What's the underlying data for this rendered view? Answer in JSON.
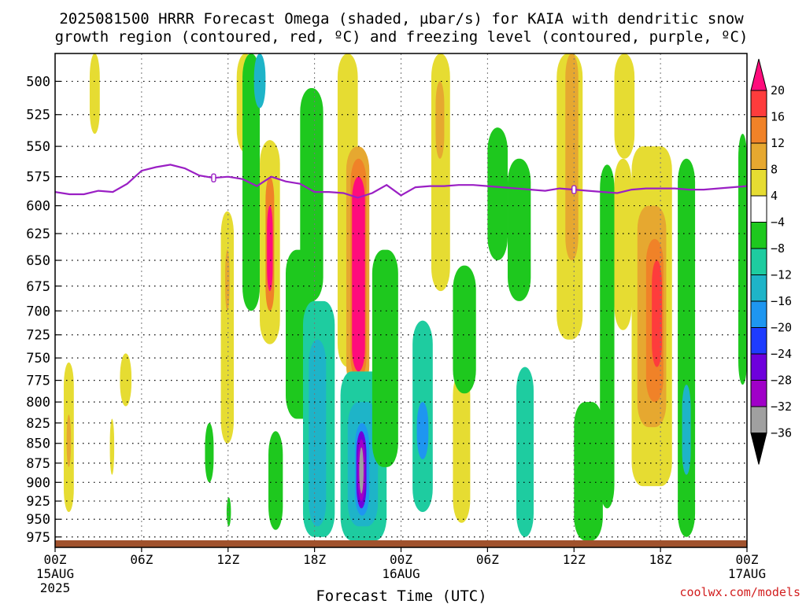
{
  "chart_data": {
    "type": "heatmap",
    "title": "2025081500 HRRR Forecast Omega (shaded, µbar/s) for KAIA with dendritic snow growth region (contoured, red, ºC) and freezing level (contoured, purple, ºC)",
    "title_lines": [
      "2025081500 HRRR Forecast Omega (shaded, µbar/s) for KAIA with dendritic snow",
      "growth region (contoured, red, ºC) and freezing level (contoured, purple, ºC)"
    ],
    "xlabel": "Forecast Time (UTC)",
    "ylabel": "",
    "x_ticks": [
      {
        "hour": 0,
        "label": "00Z",
        "sub": "15AUG",
        "sub2": "2025"
      },
      {
        "hour": 6,
        "label": "06Z",
        "sub": "",
        "sub2": ""
      },
      {
        "hour": 12,
        "label": "12Z",
        "sub": "",
        "sub2": ""
      },
      {
        "hour": 18,
        "label": "18Z",
        "sub": "",
        "sub2": ""
      },
      {
        "hour": 24,
        "label": "00Z",
        "sub": "16AUG",
        "sub2": ""
      },
      {
        "hour": 30,
        "label": "06Z",
        "sub": "",
        "sub2": ""
      },
      {
        "hour": 36,
        "label": "12Z",
        "sub": "",
        "sub2": ""
      },
      {
        "hour": 42,
        "label": "18Z",
        "sub": "",
        "sub2": ""
      },
      {
        "hour": 48,
        "label": "00Z",
        "sub": "17AUG",
        "sub2": ""
      }
    ],
    "xlim": [
      0,
      48
    ],
    "y_levels": [
      500,
      525,
      550,
      575,
      600,
      625,
      650,
      675,
      700,
      725,
      750,
      775,
      800,
      825,
      850,
      875,
      900,
      925,
      950,
      975
    ],
    "ylim": [
      480,
      990
    ],
    "y_scale": "log-pressure",
    "grid": true,
    "colorbar": {
      "labels": [
        "20",
        "16",
        "12",
        "8",
        "4",
        "−4",
        "−8",
        "−12",
        "−16",
        "−20",
        "−24",
        "−28",
        "−32",
        "−36"
      ],
      "colors": [
        "#ff0c7c",
        "#fe3c3c",
        "#f08228",
        "#e6a830",
        "#e6dc32",
        "#ffffff",
        "#1ec81e",
        "#1ecca0",
        "#1eb4c8",
        "#1e96f0",
        "#1e3cff",
        "#6e00dc",
        "#a000c8",
        "#a0a0a0",
        "#000000"
      ]
    },
    "shaded_omega_cells": [
      {
        "t0": 0.6,
        "t1": 1.3,
        "p0": 755,
        "p1": 940,
        "omega": 6
      },
      {
        "t0": 0.8,
        "t1": 1.1,
        "p0": 815,
        "p1": 880,
        "omega": 9
      },
      {
        "t0": 2.4,
        "t1": 3.1,
        "p0": 480,
        "p1": 540,
        "omega": 6
      },
      {
        "t0": 3.8,
        "t1": 4.1,
        "p0": 820,
        "p1": 890,
        "omega": 5
      },
      {
        "t0": 4.5,
        "t1": 5.3,
        "p0": 745,
        "p1": 805,
        "omega": 5
      },
      {
        "t0": 10.4,
        "t1": 11.0,
        "p0": 825,
        "p1": 900,
        "omega": -7
      },
      {
        "t0": 11.5,
        "t1": 12.4,
        "p0": 605,
        "p1": 850,
        "omega": 6
      },
      {
        "t0": 11.8,
        "t1": 12.1,
        "p0": 640,
        "p1": 700,
        "omega": 9
      },
      {
        "t0": 11.9,
        "t1": 12.2,
        "p0": 920,
        "p1": 960,
        "omega": -7
      },
      {
        "t0": 12.6,
        "t1": 13.8,
        "p0": 480,
        "p1": 555,
        "omega": 6
      },
      {
        "t0": 13.0,
        "t1": 14.2,
        "p0": 480,
        "p1": 700,
        "omega": -6
      },
      {
        "t0": 13.8,
        "t1": 14.6,
        "p0": 480,
        "p1": 520,
        "omega": -12
      },
      {
        "t0": 14.2,
        "t1": 15.6,
        "p0": 545,
        "p1": 735,
        "omega": 6
      },
      {
        "t0": 14.6,
        "t1": 15.2,
        "p0": 575,
        "p1": 700,
        "omega": 12
      },
      {
        "t0": 14.7,
        "t1": 15.1,
        "p0": 600,
        "p1": 680,
        "omega": 20
      },
      {
        "t0": 14.8,
        "t1": 15.8,
        "p0": 835,
        "p1": 965,
        "omega": -7
      },
      {
        "t0": 16.0,
        "t1": 18.0,
        "p0": 640,
        "p1": 820,
        "omega": -6
      },
      {
        "t0": 17.0,
        "t1": 18.6,
        "p0": 505,
        "p1": 690,
        "omega": -6
      },
      {
        "t0": 17.2,
        "t1": 19.4,
        "p0": 690,
        "p1": 975,
        "omega": -10
      },
      {
        "t0": 17.6,
        "t1": 18.8,
        "p0": 730,
        "p1": 960,
        "omega": -13
      },
      {
        "t0": 19.6,
        "t1": 21.0,
        "p0": 480,
        "p1": 760,
        "omega": 6
      },
      {
        "t0": 20.2,
        "t1": 21.8,
        "p0": 550,
        "p1": 785,
        "omega": 9
      },
      {
        "t0": 20.5,
        "t1": 21.6,
        "p0": 560,
        "p1": 775,
        "omega": 12
      },
      {
        "t0": 20.6,
        "t1": 21.5,
        "p0": 575,
        "p1": 765,
        "omega": 20
      },
      {
        "t0": 19.8,
        "t1": 23.0,
        "p0": 765,
        "p1": 980,
        "omega": -8
      },
      {
        "t0": 20.3,
        "t1": 22.4,
        "p0": 800,
        "p1": 960,
        "omega": -13
      },
      {
        "t0": 20.8,
        "t1": 21.8,
        "p0": 825,
        "p1": 945,
        "omega": -18
      },
      {
        "t0": 20.9,
        "t1": 21.6,
        "p0": 835,
        "p1": 935,
        "omega": -26
      },
      {
        "t0": 21.0,
        "t1": 21.5,
        "p0": 845,
        "p1": 925,
        "omega": -30
      },
      {
        "t0": 21.1,
        "t1": 21.4,
        "p0": 855,
        "p1": 915,
        "omega": -34
      },
      {
        "t0": 22.0,
        "t1": 23.8,
        "p0": 640,
        "p1": 880,
        "omega": -7
      },
      {
        "t0": 24.8,
        "t1": 26.2,
        "p0": 710,
        "p1": 940,
        "omega": -8
      },
      {
        "t0": 25.1,
        "t1": 25.9,
        "p0": 800,
        "p1": 870,
        "omega": -17
      },
      {
        "t0": 26.1,
        "t1": 27.4,
        "p0": 480,
        "p1": 680,
        "omega": 6
      },
      {
        "t0": 26.4,
        "t1": 27.0,
        "p0": 500,
        "p1": 560,
        "omega": 8
      },
      {
        "t0": 27.6,
        "t1": 28.8,
        "p0": 765,
        "p1": 955,
        "omega": 6
      },
      {
        "t0": 27.6,
        "t1": 29.2,
        "p0": 655,
        "p1": 790,
        "omega": -7
      },
      {
        "t0": 30.0,
        "t1": 31.4,
        "p0": 535,
        "p1": 650,
        "omega": -6
      },
      {
        "t0": 31.4,
        "t1": 33.0,
        "p0": 560,
        "p1": 690,
        "omega": -6
      },
      {
        "t0": 32.0,
        "t1": 33.2,
        "p0": 760,
        "p1": 975,
        "omega": -8
      },
      {
        "t0": 34.8,
        "t1": 36.6,
        "p0": 480,
        "p1": 730,
        "omega": 6
      },
      {
        "t0": 35.4,
        "t1": 36.3,
        "p0": 480,
        "p1": 650,
        "omega": 10
      },
      {
        "t0": 36.0,
        "t1": 38.0,
        "p0": 800,
        "p1": 980,
        "omega": -7
      },
      {
        "t0": 37.8,
        "t1": 38.8,
        "p0": 565,
        "p1": 935,
        "omega": -7
      },
      {
        "t0": 38.8,
        "t1": 40.2,
        "p0": 480,
        "p1": 560,
        "omega": 6
      },
      {
        "t0": 38.8,
        "t1": 40.0,
        "p0": 560,
        "p1": 720,
        "omega": 6
      },
      {
        "t0": 40.0,
        "t1": 42.8,
        "p0": 550,
        "p1": 905,
        "omega": 6
      },
      {
        "t0": 40.4,
        "t1": 42.4,
        "p0": 600,
        "p1": 830,
        "omega": 9
      },
      {
        "t0": 41.0,
        "t1": 42.2,
        "p0": 630,
        "p1": 800,
        "omega": 12
      },
      {
        "t0": 41.4,
        "t1": 42.1,
        "p0": 650,
        "p1": 760,
        "omega": 16
      },
      {
        "t0": 43.2,
        "t1": 44.4,
        "p0": 560,
        "p1": 975,
        "omega": -7
      },
      {
        "t0": 43.5,
        "t1": 44.1,
        "p0": 780,
        "p1": 890,
        "omega": -12
      },
      {
        "t0": 47.4,
        "t1": 48.0,
        "p0": 540,
        "p1": 780,
        "omega": -7
      }
    ],
    "freezing_level_series": {
      "hours": [
        0,
        1,
        2,
        3,
        4,
        5,
        6,
        7,
        8,
        9,
        10,
        11,
        12,
        13,
        14,
        15,
        16,
        17,
        18,
        19,
        20,
        21,
        22,
        23,
        24,
        25,
        26,
        27,
        28,
        29,
        30,
        31,
        32,
        33,
        34,
        35,
        36,
        37,
        38,
        39,
        40,
        41,
        42,
        43,
        44,
        45,
        46,
        47,
        48
      ],
      "pressure_hpa": [
        588,
        590,
        590,
        587,
        588,
        581,
        570,
        567,
        565,
        568,
        574,
        576,
        575,
        577,
        583,
        575,
        579,
        581,
        588,
        588,
        589,
        593,
        589,
        582,
        591,
        584,
        583,
        583,
        582,
        582,
        583,
        584,
        585,
        586,
        587,
        585,
        586,
        587,
        588,
        589,
        586,
        585,
        585,
        585,
        586,
        586,
        585,
        584,
        583
      ]
    },
    "surface_band_color": "#a0522d",
    "credit": "coolwx.com/models"
  }
}
